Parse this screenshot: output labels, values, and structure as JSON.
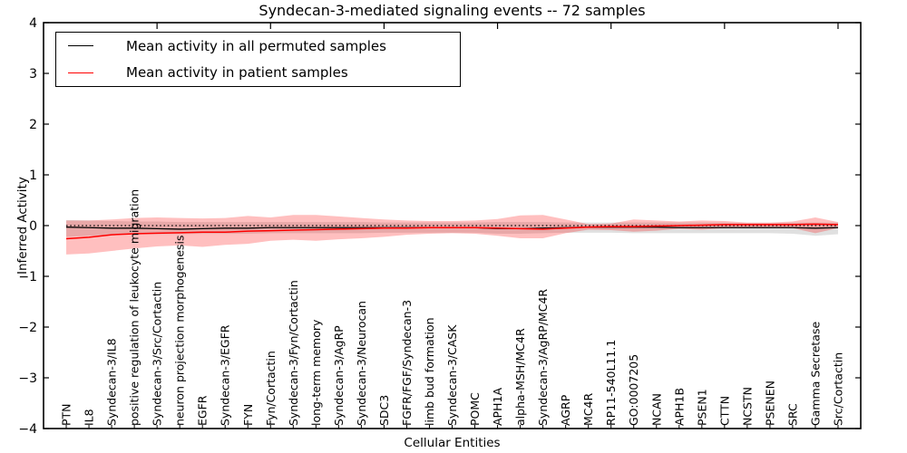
{
  "title": "Syndecan-3-mediated signaling events -- 72 samples",
  "axes": {
    "ylabel": "Inferred Activity",
    "xlabel": "Cellular Entities"
  },
  "legend": {
    "items": [
      {
        "label": "Mean activity in all permuted samples",
        "color": "#000000"
      },
      {
        "label": "Mean activity in patient samples",
        "color": "#ff0000"
      }
    ]
  },
  "colors": {
    "permuted_line": "#000000",
    "patient_line": "#ff0000",
    "permuted_band": "rgba(0,0,0,0.12)",
    "patient_band": "rgba(255,0,0,0.25)",
    "frame": "#000000"
  },
  "chart_data": {
    "type": "line",
    "title": "Syndecan-3-mediated signaling events -- 72 samples",
    "xlabel": "Cellular Entities",
    "ylabel": "Inferred Activity",
    "ylim": [
      -4,
      4
    ],
    "yticks": [
      4,
      3,
      2,
      1,
      0,
      -1,
      -2,
      -3,
      -4
    ],
    "grid": false,
    "legend_position": "upper left",
    "reference_line": {
      "y": 0,
      "style": "dotted",
      "color": "#000000"
    },
    "top_tick_indices": [
      4,
      9,
      14,
      19,
      24,
      29,
      34
    ],
    "categories": [
      "PTN",
      "IL8",
      "Syndecan-3/IL8",
      "positive regulation of leukocyte migration",
      "Syndecan-3/Src/Cortactin",
      "neuron projection morphogenesis",
      "EGFR",
      "Syndecan-3/EGFR",
      "FYN",
      "Fyn/Cortactin",
      "Syndecan-3/Fyn/Cortactin",
      "long-term memory",
      "Syndecan-3/AgRP",
      "Syndecan-3/Neurocan",
      "SDC3",
      "FGFR/FGF/Syndecan-3",
      "limb bud formation",
      "Syndecan-3/CASK",
      "POMC",
      "APH1A",
      "alpha-MSH/MC4R",
      "Syndecan-3/AgRP/MC4R",
      "AGRP",
      "MC4R",
      "RP11-540L11.1",
      "GO:0007205",
      "NCAN",
      "APH1B",
      "PSEN1",
      "CTTN",
      "NCSTN",
      "PSENEN",
      "SRC",
      "Gamma Secretase",
      "Src/Cortactin"
    ],
    "series": [
      {
        "name": "Mean activity in all permuted samples",
        "color": "#000000",
        "values": [
          -0.03,
          -0.04,
          -0.05,
          -0.05,
          -0.06,
          -0.07,
          -0.06,
          -0.05,
          -0.05,
          -0.04,
          -0.04,
          -0.04,
          -0.04,
          -0.04,
          -0.04,
          -0.04,
          -0.04,
          -0.04,
          -0.04,
          -0.06,
          -0.06,
          -0.05,
          -0.04,
          -0.03,
          -0.03,
          -0.03,
          -0.03,
          -0.04,
          -0.04,
          -0.04,
          -0.04,
          -0.04,
          -0.04,
          -0.05,
          -0.04
        ],
        "band_upper": [
          0.11,
          0.1,
          0.09,
          0.08,
          0.08,
          0.07,
          0.07,
          0.07,
          0.07,
          0.07,
          0.07,
          0.07,
          0.07,
          0.07,
          0.06,
          0.06,
          0.06,
          0.06,
          0.06,
          0.07,
          0.07,
          0.07,
          0.06,
          0.06,
          0.06,
          0.06,
          0.06,
          0.06,
          0.06,
          0.06,
          0.05,
          0.05,
          0.06,
          0.06,
          0.06
        ],
        "band_lower": [
          -0.22,
          -0.2,
          -0.18,
          -0.17,
          -0.17,
          -0.17,
          -0.16,
          -0.16,
          -0.16,
          -0.15,
          -0.15,
          -0.15,
          -0.15,
          -0.15,
          -0.14,
          -0.14,
          -0.14,
          -0.14,
          -0.14,
          -0.16,
          -0.16,
          -0.15,
          -0.14,
          -0.14,
          -0.14,
          -0.15,
          -0.15,
          -0.15,
          -0.15,
          -0.15,
          -0.15,
          -0.15,
          -0.16,
          -0.2,
          -0.17
        ]
      },
      {
        "name": "Mean activity in patient samples",
        "color": "#ff0000",
        "values": [
          -0.26,
          -0.23,
          -0.18,
          -0.16,
          -0.15,
          -0.14,
          -0.13,
          -0.13,
          -0.11,
          -0.1,
          -0.09,
          -0.08,
          -0.07,
          -0.06,
          -0.05,
          -0.05,
          -0.04,
          -0.04,
          -0.04,
          -0.05,
          -0.06,
          -0.07,
          -0.05,
          -0.03,
          -0.02,
          -0.02,
          -0.01,
          0.0,
          0.01,
          0.02,
          0.02,
          0.02,
          0.02,
          0.03,
          0.02
        ],
        "band_upper": [
          0.1,
          0.1,
          0.12,
          0.15,
          0.16,
          0.15,
          0.14,
          0.15,
          0.19,
          0.16,
          0.21,
          0.21,
          0.18,
          0.15,
          0.12,
          0.1,
          0.09,
          0.09,
          0.1,
          0.13,
          0.2,
          0.21,
          0.12,
          0.03,
          0.04,
          0.12,
          0.1,
          0.08,
          0.1,
          0.09,
          0.06,
          0.06,
          0.08,
          0.16,
          0.07
        ],
        "band_lower": [
          -0.57,
          -0.55,
          -0.5,
          -0.45,
          -0.41,
          -0.39,
          -0.42,
          -0.38,
          -0.36,
          -0.3,
          -0.28,
          -0.3,
          -0.27,
          -0.25,
          -0.22,
          -0.18,
          -0.16,
          -0.15,
          -0.16,
          -0.2,
          -0.25,
          -0.25,
          -0.15,
          -0.08,
          -0.09,
          -0.12,
          -0.1,
          -0.06,
          -0.08,
          -0.05,
          -0.04,
          -0.03,
          -0.05,
          -0.15,
          -0.05
        ]
      }
    ]
  }
}
